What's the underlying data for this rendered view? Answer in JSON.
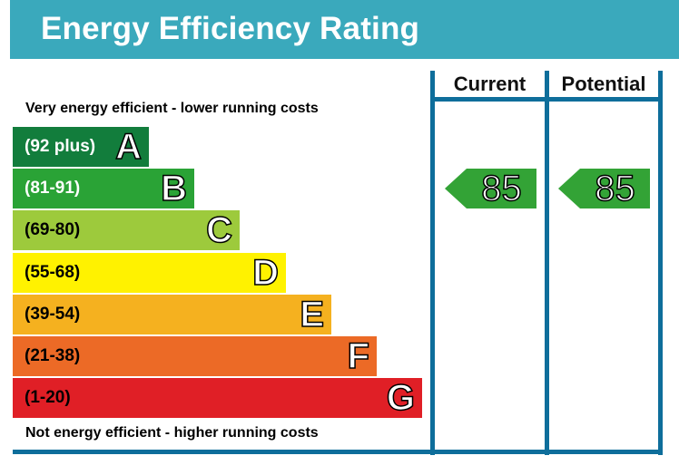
{
  "title": "Energy Efficiency Rating",
  "columns": {
    "current": "Current",
    "potential": "Potential"
  },
  "captions": {
    "top": "Very energy efficient - lower running costs",
    "bottom": "Not energy efficient - higher running costs"
  },
  "colors": {
    "title_bg": "#3aa9bc",
    "border": "#0e6e9b",
    "arrow": "#33a336"
  },
  "chart_data": {
    "type": "bar",
    "title": "Energy Efficiency Rating",
    "categories": [
      "A",
      "B",
      "C",
      "D",
      "E",
      "F",
      "G"
    ],
    "bands": [
      {
        "letter": "A",
        "range": "(92 plus)",
        "color": "#127d3c",
        "text_color": "#ffffff"
      },
      {
        "letter": "B",
        "range": "(81-91)",
        "color": "#2aa336",
        "text_color": "#ffffff"
      },
      {
        "letter": "C",
        "range": "(69-80)",
        "color": "#9dca3c",
        "text_color": "#000000"
      },
      {
        "letter": "D",
        "range": "(55-68)",
        "color": "#fff200",
        "text_color": "#000000"
      },
      {
        "letter": "E",
        "range": "(39-54)",
        "color": "#f5b11f",
        "text_color": "#000000"
      },
      {
        "letter": "F",
        "range": "(21-38)",
        "color": "#ec6a26",
        "text_color": "#000000"
      },
      {
        "letter": "G",
        "range": "(1-20)",
        "color": "#e01f26",
        "text_color": "#000000"
      }
    ],
    "current": {
      "value": 85,
      "band": "B"
    },
    "potential": {
      "value": 85,
      "band": "B"
    }
  }
}
